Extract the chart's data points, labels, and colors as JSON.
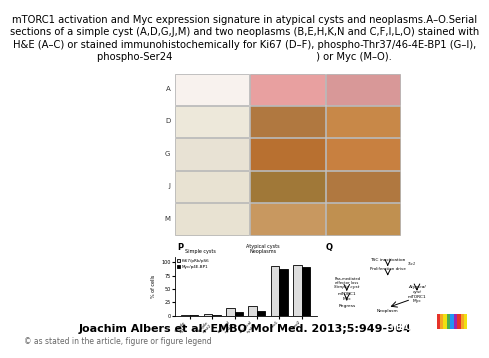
{
  "title_text": "mTORC1 activation and Myc expression signature in atypical cysts and neoplasms.A–O.Serial\nsections of a simple cyst (A,D,G,J,M) and two neoplasms (B,E,H,K,N and C,F,I,L,O) stained with\nH&E (A–C) or stained immunohistochemically for Ki67 (D–F), phospho-Thr37/46-4E-BP1 (G–I),\nphospho-Ser24                                              ) or Myc (M–O).",
  "citation": "Joachim Albers et al. EMBO Mol Med. 2013;5:949-964",
  "copyright": "© as stated in the article, figure or figure legend",
  "bg_color": "#ffffff",
  "title_fontsize": 7.2,
  "citation_fontsize": 8.0,
  "copyright_fontsize": 5.5,
  "embo_box_color": "#1a4f8a",
  "embo_stripe_colors": [
    "#e63329",
    "#f5a623",
    "#f0e010",
    "#4caf50",
    "#2196f3",
    "#9c27b0",
    "#e63329",
    "#f5a623",
    "#f0e010"
  ],
  "grid_colors": [
    [
      "#f5eeee",
      "#e8a0a0",
      "#d89898"
    ],
    [
      "#e8e0d0",
      "#b07840",
      "#c88848"
    ],
    [
      "#e0d8c8",
      "#b87030",
      "#c88040"
    ],
    [
      "#e0d8c8",
      "#a07838",
      "#b07840"
    ],
    [
      "#e8e0c8",
      "#c89860",
      "#c09050"
    ]
  ],
  "simple_cyst_colors": [
    "#f8f2ee",
    "#ede8da",
    "#e8e2d4",
    "#e8e2d2",
    "#e8e2d2"
  ],
  "bar_categories": [
    "simple\ncyst1",
    "simple\ncyst2",
    "atypical\ncyst1",
    "atypical\ncyst2",
    "neo1",
    "neo2"
  ],
  "bar_ki67": [
    2,
    4,
    15,
    18,
    92,
    95
  ],
  "bar_myc": [
    1,
    2,
    8,
    10,
    88,
    90
  ],
  "bar_ylim": [
    0,
    110
  ],
  "bar_yticks": [
    0,
    25,
    50,
    75,
    100
  ]
}
